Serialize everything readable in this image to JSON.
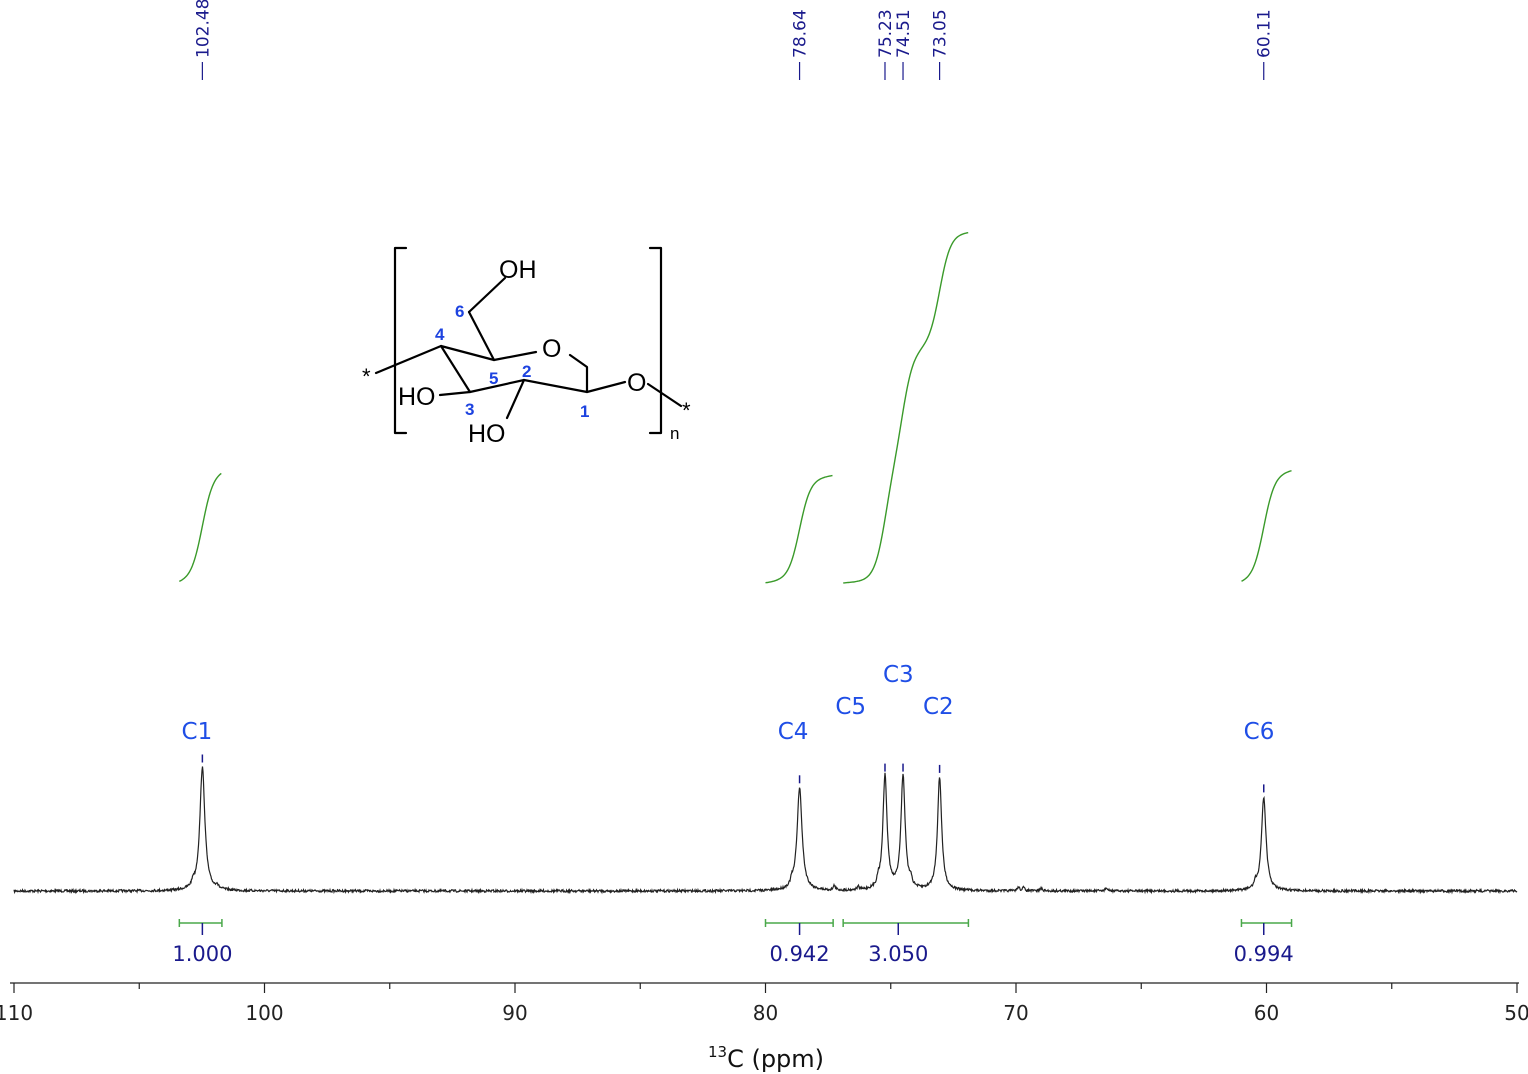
{
  "chart_data": {
    "type": "line",
    "xlabel_sup": "13",
    "xlabel_main": "C (ppm)",
    "xlim": [
      110,
      50
    ],
    "x_ticks": [
      "110",
      "100",
      "90",
      "80",
      "70",
      "60",
      "50"
    ],
    "peaks": [
      {
        "shift": "102.48",
        "ppm": 102.48,
        "height": 0.95,
        "width": 0.12
      },
      {
        "shift": "78.64",
        "ppm": 78.64,
        "height": 0.79,
        "width": 0.12
      },
      {
        "shift": "75.23",
        "ppm": 75.23,
        "height": 0.88,
        "width": 0.1
      },
      {
        "shift": "74.51",
        "ppm": 74.51,
        "height": 0.88,
        "width": 0.1
      },
      {
        "shift": "73.05",
        "ppm": 73.05,
        "height": 0.87,
        "width": 0.1
      },
      {
        "shift": "60.11",
        "ppm": 60.11,
        "height": 0.72,
        "width": 0.11
      }
    ],
    "assignments": [
      {
        "label": "C1",
        "ppm": 102.7,
        "level": 0
      },
      {
        "label": "C4",
        "ppm": 78.9,
        "level": 0
      },
      {
        "label": "C5",
        "ppm": 76.6,
        "level": 1
      },
      {
        "label": "C3",
        "ppm": 74.7,
        "level": 2
      },
      {
        "label": "C2",
        "ppm": 73.1,
        "level": 1
      },
      {
        "label": "C6",
        "ppm": 60.3,
        "level": 0
      }
    ],
    "integrals": [
      {
        "value": "1.000",
        "from": 103.4,
        "to": 101.7,
        "center": 102.48,
        "step": 0.6
      },
      {
        "value": "0.942",
        "from": 80.0,
        "to": 77.3,
        "center": 78.64,
        "step": 0.57
      },
      {
        "value": "3.050",
        "from": 76.9,
        "to": 71.9,
        "center": 74.7,
        "step": 1.96
      },
      {
        "value": "0.994",
        "from": 61.0,
        "to": 59.0,
        "center": 60.11,
        "step": 0.6
      }
    ]
  },
  "structure": {
    "atoms": {
      "oh": "OH",
      "ring_o": "O",
      "glyco_o": "O",
      "ho3": "HO",
      "ho2": "HO"
    },
    "numbers": [
      "1",
      "2",
      "3",
      "4",
      "5",
      "6"
    ],
    "star": "*",
    "repeat": "n"
  },
  "colors": {
    "spectrum": "#222222",
    "integral_curve": "#3a9a2a",
    "integral_bracket": "#4aa84a",
    "peak_label": "#1a1a8c",
    "assignment": "#1f4ee6",
    "atom_number": "#1d43e0"
  }
}
